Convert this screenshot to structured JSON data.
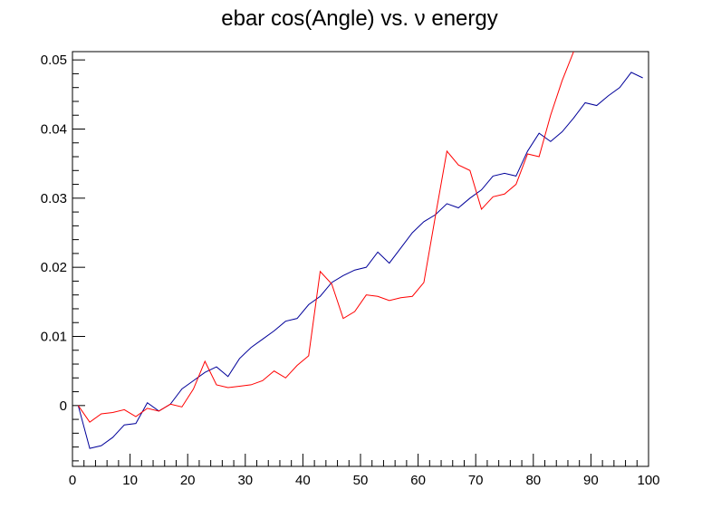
{
  "chart_data": {
    "type": "line",
    "title": "ebar cos(Angle) vs.  ν energy",
    "xlabel": "",
    "ylabel": "",
    "xlim": [
      0,
      100
    ],
    "ylim": [
      -0.0088,
      0.0512
    ],
    "x_ticks": [
      0,
      10,
      20,
      30,
      40,
      50,
      60,
      70,
      80,
      90,
      100
    ],
    "x_tick_labels": [
      "0",
      "10",
      "20",
      "30",
      "40",
      "50",
      "60",
      "70",
      "80",
      "90",
      "100"
    ],
    "y_ticks": [
      0,
      0.01,
      0.02,
      0.03,
      0.04,
      0.05
    ],
    "y_tick_labels": [
      "0",
      "0.01",
      "0.02",
      "0.03",
      "0.04",
      "0.05"
    ],
    "grid": false,
    "legend": "none",
    "series": [
      {
        "color": "#000099",
        "x": [
          1,
          3,
          5,
          7,
          9,
          11,
          13,
          15,
          17,
          19,
          21,
          23,
          25,
          27,
          29,
          31,
          33,
          35,
          37,
          39,
          41,
          43,
          45,
          47,
          49,
          51,
          53,
          55,
          57,
          59,
          61,
          63,
          65,
          67,
          69,
          71,
          73,
          75,
          77,
          79,
          81,
          83,
          85,
          87,
          89,
          91,
          93,
          95,
          97,
          99
        ],
        "y": [
          0.0,
          -0.0062,
          -0.0058,
          -0.0046,
          -0.0028,
          -0.0026,
          0.0004,
          -0.0008,
          0.0002,
          0.0024,
          0.0036,
          0.0048,
          0.0056,
          0.0042,
          0.0068,
          0.0084,
          0.0096,
          0.0108,
          0.0122,
          0.0126,
          0.0146,
          0.0158,
          0.0178,
          0.0188,
          0.0196,
          0.02,
          0.0222,
          0.0206,
          0.0228,
          0.025,
          0.0266,
          0.0276,
          0.0292,
          0.0286,
          0.03,
          0.0312,
          0.0332,
          0.0336,
          0.0332,
          0.0368,
          0.0394,
          0.0382,
          0.0396,
          0.0416,
          0.0438,
          0.0434,
          0.0448,
          0.046,
          0.0482,
          0.0474
        ]
      },
      {
        "color": "#ff0000",
        "x": [
          1,
          3,
          5,
          7,
          9,
          11,
          13,
          15,
          17,
          19,
          21,
          23,
          25,
          27,
          29,
          31,
          33,
          35,
          37,
          39,
          41,
          43,
          45,
          47,
          49,
          51,
          53,
          55,
          57,
          59,
          61,
          63,
          65,
          67,
          69,
          71,
          73,
          75,
          77,
          79,
          81,
          83,
          85,
          87
        ],
        "y": [
          0.0,
          -0.0024,
          -0.0012,
          -0.001,
          -0.0006,
          -0.0016,
          -0.0004,
          -0.0008,
          0.0002,
          -0.0002,
          0.0024,
          0.0064,
          0.003,
          0.0026,
          0.0028,
          0.003,
          0.0036,
          0.005,
          0.004,
          0.0058,
          0.0072,
          0.0194,
          0.0176,
          0.0126,
          0.0136,
          0.016,
          0.0158,
          0.0152,
          0.0156,
          0.0158,
          0.0178,
          0.0274,
          0.0368,
          0.0348,
          0.034,
          0.0284,
          0.0302,
          0.0306,
          0.032,
          0.0364,
          0.036,
          0.042,
          0.047,
          0.0512
        ]
      }
    ]
  }
}
